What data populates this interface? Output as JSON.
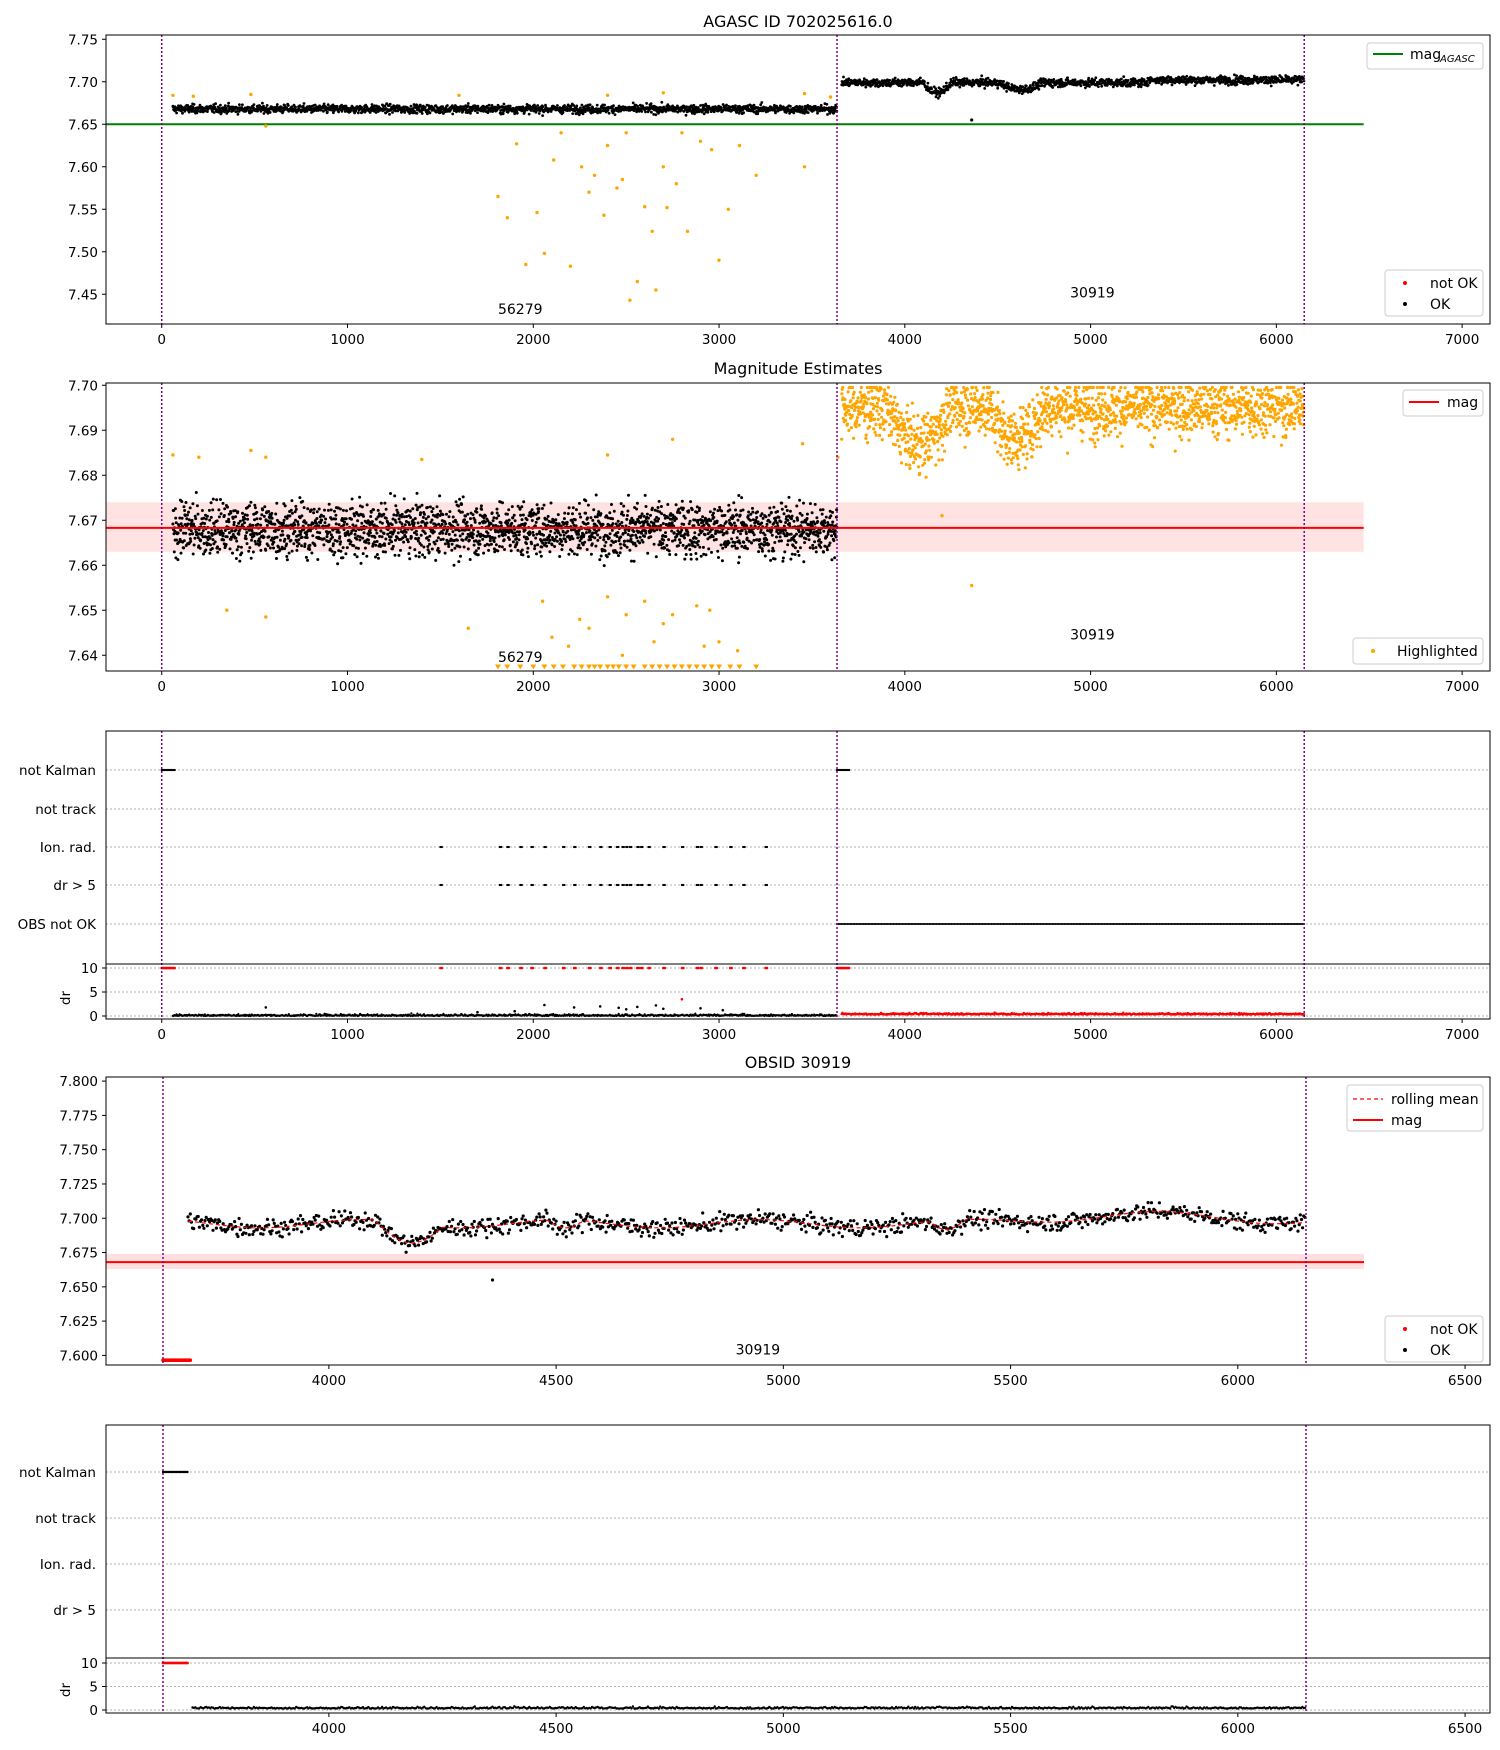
{
  "chart_data": [
    {
      "type": "scatter",
      "title": "AGASC ID 702025616.0",
      "xlim": [
        -300,
        7150
      ],
      "ylim": [
        7.415,
        7.755
      ],
      "x_ticks": [
        "0",
        "1000",
        "2000",
        "3000",
        "4000",
        "5000",
        "6000",
        "7000"
      ],
      "y_ticks": [
        "7.45",
        "7.50",
        "7.55",
        "7.60",
        "7.65",
        "7.70",
        "7.75"
      ],
      "obs_boundaries": [
        0,
        3635,
        6150
      ],
      "obs_labels": [
        {
          "text": "56279",
          "x": 1810,
          "y": 7.427
        },
        {
          "text": "30919",
          "x": 4890,
          "y": 7.446
        }
      ],
      "reference_line": {
        "label": "mag_AGASC",
        "value": 7.65,
        "x_range": [
          -300,
          6470
        ],
        "color": "#008000"
      },
      "series": [
        {
          "name": "not OK",
          "color": "#ff0000",
          "x_range": [
            60,
            3635
          ],
          "mean": 7.668,
          "spread": 0.004
        },
        {
          "name": "OK",
          "color": "#000000",
          "x_range": [
            60,
            3635
          ],
          "mean": 7.668,
          "spread": 0.004
        },
        {
          "name": "OK",
          "color": "#000000",
          "x_range": [
            3660,
            6150
          ],
          "mean": 7.699,
          "spread": 0.004
        }
      ],
      "highlighted_points": [
        [
          1810,
          7.565
        ],
        [
          1860,
          7.54
        ],
        [
          1910,
          7.627
        ],
        [
          1960,
          7.485
        ],
        [
          2020,
          7.546
        ],
        [
          2060,
          7.498
        ],
        [
          2110,
          7.608
        ],
        [
          2200,
          7.483
        ],
        [
          2260,
          7.6
        ],
        [
          2330,
          7.59
        ],
        [
          2380,
          7.543
        ],
        [
          2450,
          7.575
        ],
        [
          2520,
          7.443
        ],
        [
          2560,
          7.465
        ],
        [
          2600,
          7.553
        ],
        [
          2640,
          7.524
        ],
        [
          2660,
          7.455
        ],
        [
          2720,
          7.552
        ],
        [
          2770,
          7.58
        ],
        [
          2830,
          7.524
        ],
        [
          2900,
          7.63
        ],
        [
          2960,
          7.62
        ],
        [
          3000,
          7.49
        ],
        [
          3050,
          7.55
        ],
        [
          3110,
          7.625
        ],
        [
          3200,
          7.59
        ],
        [
          3460,
          7.6
        ],
        [
          2150,
          7.64
        ],
        [
          2400,
          7.625
        ],
        [
          2500,
          7.64
        ],
        [
          2700,
          7.6
        ],
        [
          2800,
          7.64
        ],
        [
          2300,
          7.57
        ],
        [
          2480,
          7.585
        ]
      ],
      "legend": {
        "position": "lower right",
        "entries": [
          "not OK",
          "OK"
        ]
      }
    },
    {
      "type": "scatter",
      "title": "Magnitude Estimates",
      "xlim": [
        -300,
        7150
      ],
      "ylim": [
        7.6365,
        7.7005
      ],
      "x_ticks": [
        "0",
        "1000",
        "2000",
        "3000",
        "4000",
        "5000",
        "6000",
        "7000"
      ],
      "y_ticks": [
        "7.64",
        "7.65",
        "7.66",
        "7.67",
        "7.68",
        "7.69",
        "7.70"
      ],
      "obs_labels": [
        {
          "text": "56279",
          "x": 1810,
          "y": 7.6385
        },
        {
          "text": "30919",
          "x": 4890,
          "y": 7.6435
        }
      ],
      "mag_line": {
        "label": "mag",
        "value": 7.6683,
        "band": [
          7.663,
          7.674
        ],
        "color": "#ff0000"
      },
      "series": [
        {
          "name": "OK",
          "color": "#000000",
          "x_range": [
            60,
            3635
          ],
          "mean": 7.668,
          "spread": 0.004
        },
        {
          "name": "Highlighted",
          "color": "#ffa500",
          "x_range": [
            3660,
            6150
          ],
          "mean": 7.694,
          "spread": 0.005
        }
      ],
      "legend": {
        "position": "lower right",
        "entries": [
          "Highlighted"
        ]
      }
    },
    {
      "type": "scatter",
      "title": "",
      "xlim": [
        -300,
        7150
      ],
      "x_ticks": [
        "0",
        "1000",
        "2000",
        "3000",
        "4000",
        "5000",
        "6000",
        "7000"
      ],
      "flag_categories": [
        "not Kalman",
        "not track",
        "Ion. rad.",
        "dr > 5",
        "OBS not OK"
      ],
      "flags": {
        "not Kalman": [
          [
            0,
            70
          ],
          [
            3635,
            3700
          ]
        ],
        "not track": [],
        "Ion. rad.": [
          1500,
          1820,
          1860,
          1930,
          1990,
          2060,
          2160,
          2220,
          2300,
          2360,
          2410,
          2450,
          2480,
          2500,
          2520,
          2560,
          2580,
          2620,
          2700,
          2800,
          2880,
          2900,
          2980,
          3060,
          3130,
          3250
        ],
        "dr > 5": [
          1500,
          1820,
          1860,
          1930,
          1990,
          2060,
          2160,
          2220,
          2300,
          2360,
          2410,
          2450,
          2480,
          2500,
          2520,
          2560,
          2580,
          2620,
          2700,
          2800,
          2880,
          2900,
          2980,
          3060,
          3130,
          3250
        ],
        "OBS not OK": [
          [
            3635,
            6150
          ]
        ]
      },
      "dr": {
        "ylabel": "dr",
        "ylim": [
          -0.5,
          10.5
        ],
        "y_ticks": [
          "0",
          "5",
          "10"
        ]
      }
    },
    {
      "type": "scatter",
      "title": "OBSID 30919",
      "xlim": [
        3635,
        6545
      ],
      "ylim": [
        7.593,
        7.803
      ],
      "x_ticks": [
        "4000",
        "4500",
        "5000",
        "5500",
        "6000",
        "6500"
      ],
      "y_ticks": [
        "7.600",
        "7.625",
        "7.650",
        "7.675",
        "7.700",
        "7.725",
        "7.750",
        "7.775",
        "7.800"
      ],
      "obs_boundaries": [
        3635,
        6150
      ],
      "obs_labels": [
        {
          "text": "30919",
          "x": 4895,
          "y": 7.6005
        }
      ],
      "mag_line": {
        "label": "mag",
        "value": 7.668,
        "band": [
          7.663,
          7.674
        ],
        "x_range": [
          3540,
          6280
        ],
        "color": "#ff0000"
      },
      "rolling_mean": {
        "label": "rolling mean",
        "color": "#ff0000"
      },
      "series": [
        {
          "name": "not OK",
          "color": "#ff0000",
          "x_range": [
            3635,
            3695
          ],
          "value": 7.5965
        },
        {
          "name": "OK",
          "color": "#000000",
          "x_range": [
            3690,
            6150
          ],
          "mean": 7.698,
          "spread": 0.006
        }
      ],
      "legend": {
        "position": "lower right",
        "entries": [
          "not OK",
          "OK"
        ]
      },
      "legend_top": {
        "position": "upper right",
        "entries": [
          "rolling mean",
          "mag"
        ]
      }
    },
    {
      "type": "scatter",
      "title": "",
      "xlim": [
        3635,
        6545
      ],
      "x_ticks": [
        "4000",
        "4500",
        "5000",
        "5500",
        "6000",
        "6500"
      ],
      "flag_categories": [
        "not Kalman",
        "not track",
        "Ion. rad.",
        "dr > 5"
      ],
      "flags": {
        "not Kalman": [
          [
            3635,
            3690
          ]
        ],
        "not track": [],
        "Ion. rad.": [],
        "dr > 5": []
      },
      "dr": {
        "ylabel": "dr",
        "ylim": [
          -0.5,
          10.5
        ],
        "y_ticks": [
          "0",
          "5",
          "10"
        ]
      }
    }
  ],
  "legend_labels": {
    "mag_agasc_main": "mag",
    "mag_agasc_sub": "AGASC",
    "not_ok": "not OK",
    "ok": "OK",
    "mag": "mag",
    "highlighted": "Highlighted",
    "rolling_mean": "rolling mean"
  },
  "colors": {
    "ok": "#000000",
    "not_ok": "#ff0000",
    "highlighted": "#ffa500",
    "agasc": "#008000",
    "obs_line": "#800080",
    "band": "#ffcccc"
  }
}
